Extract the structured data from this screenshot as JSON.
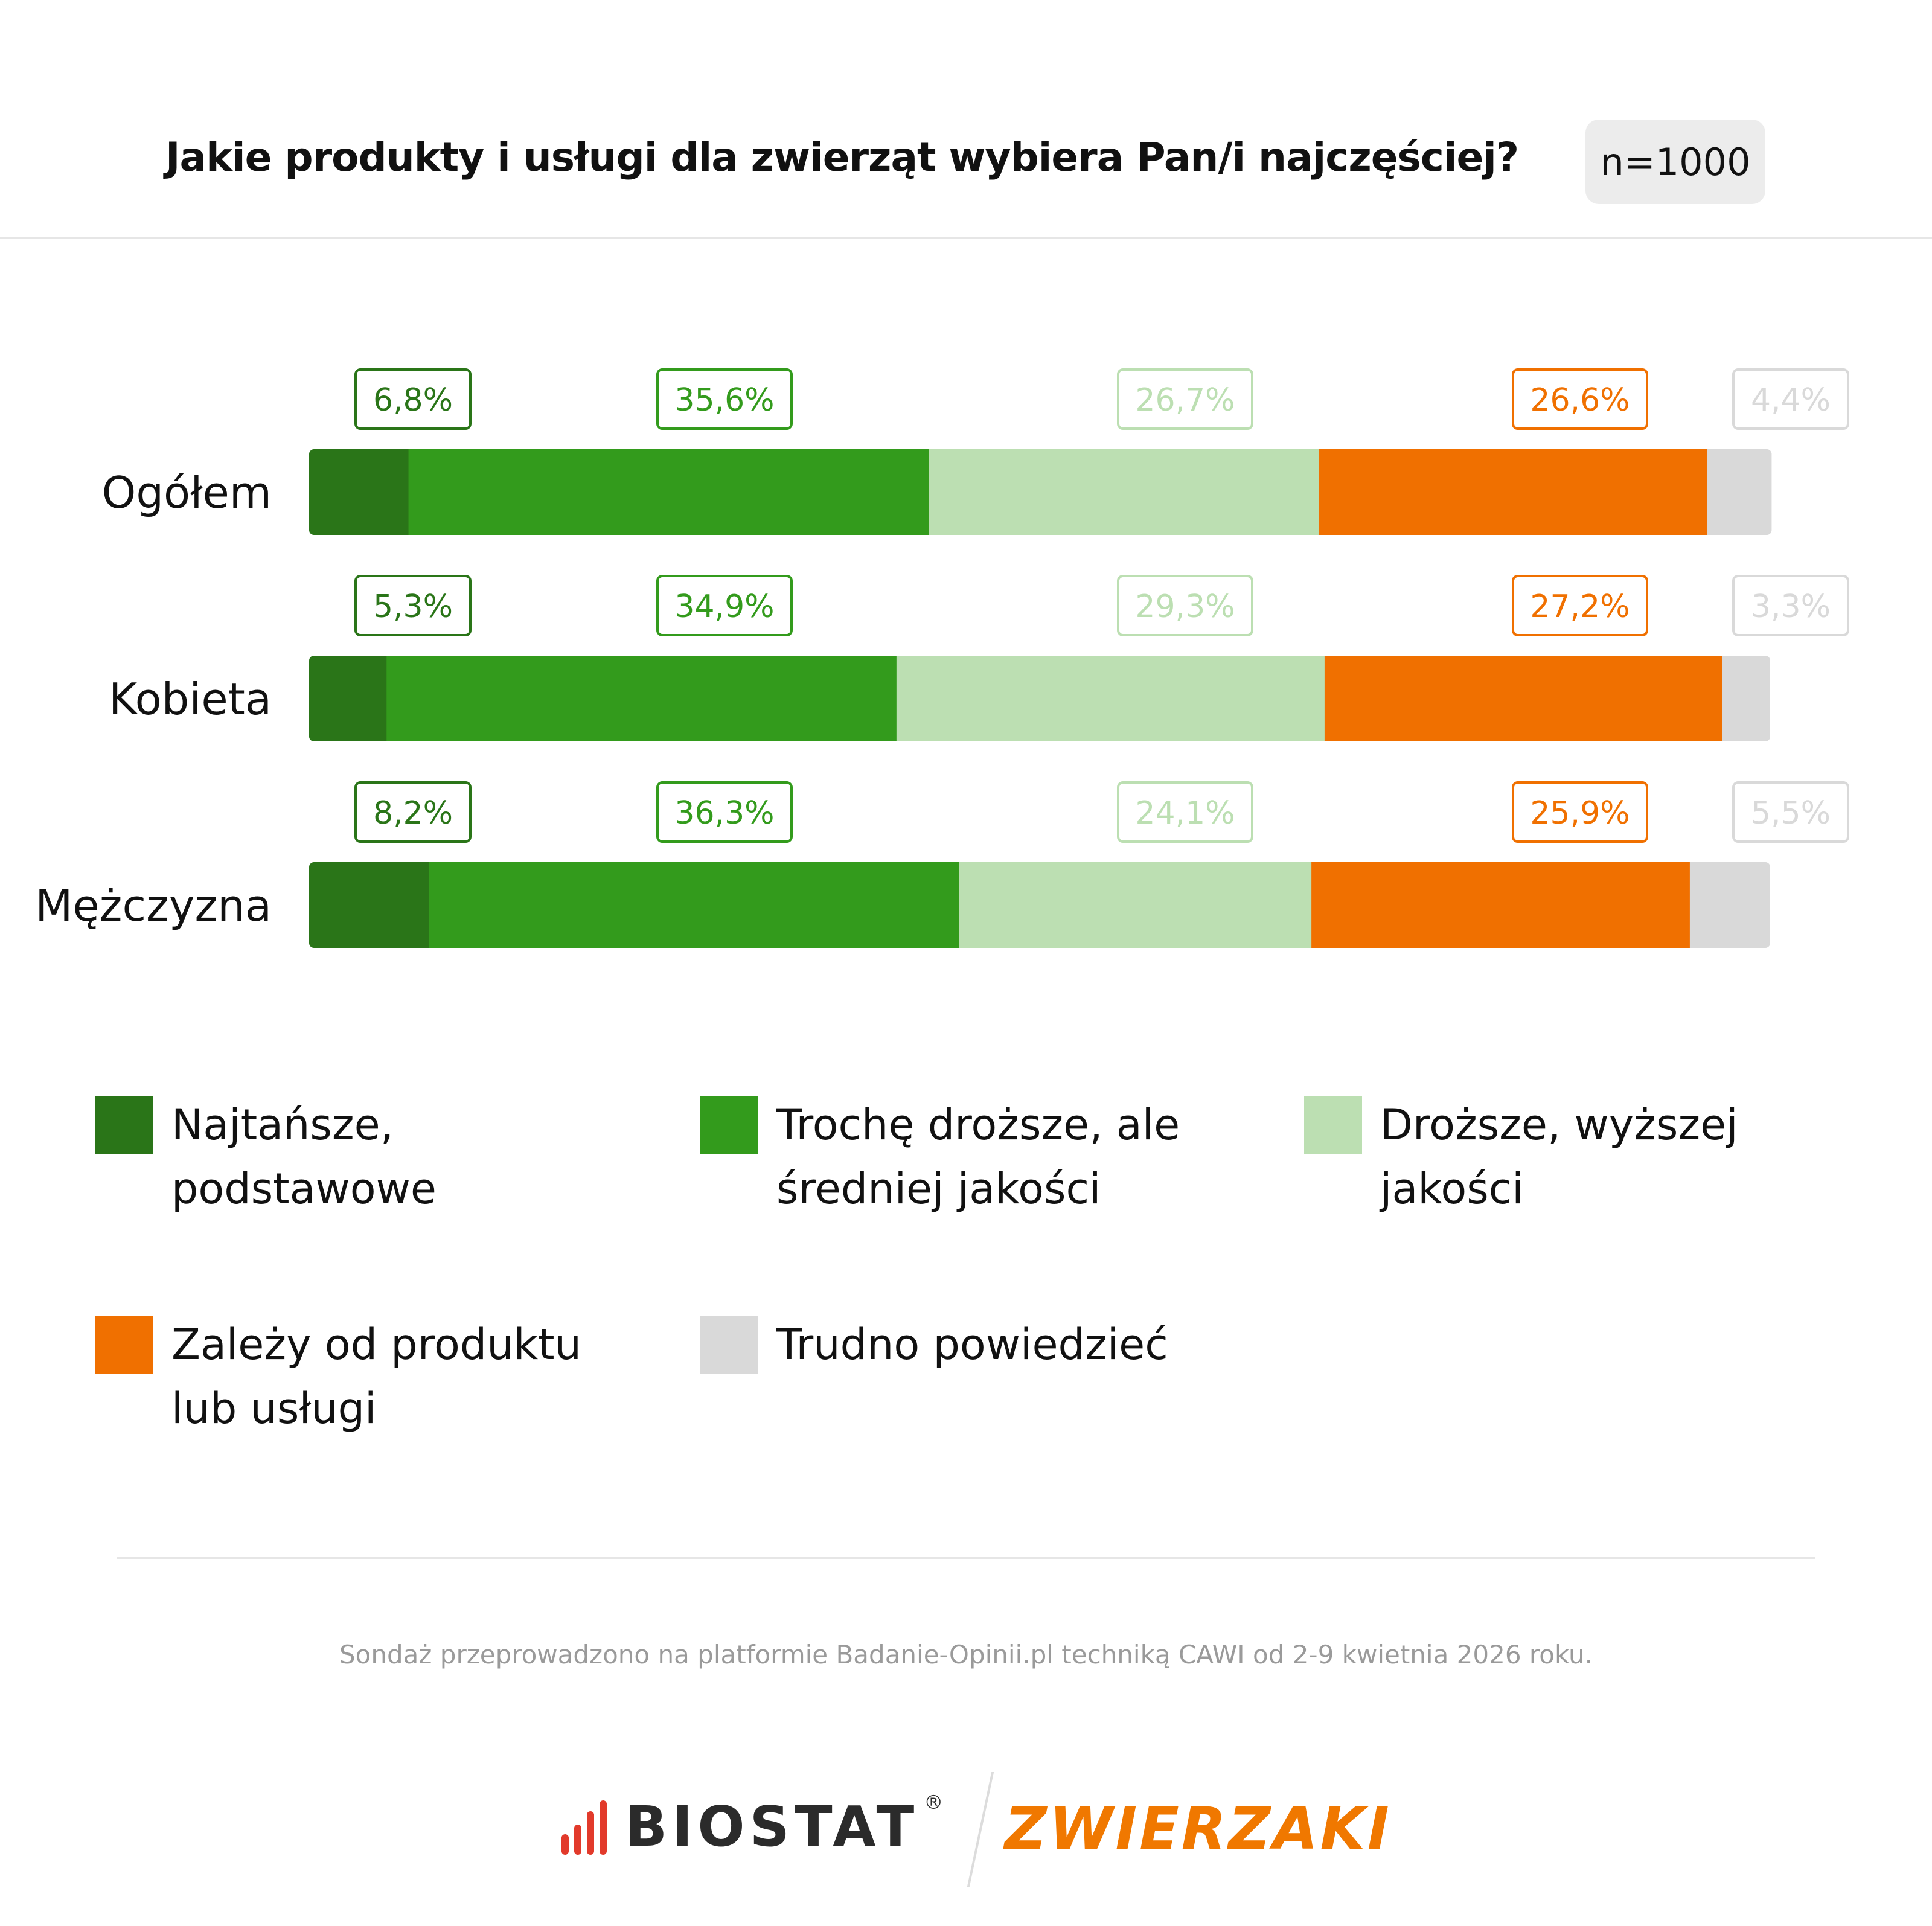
{
  "header": {
    "title": "Jakie produkty i usługi dla zwierząt wybiera Pan/i najczęściej?",
    "sample": "n=1000"
  },
  "colors": {
    "najtansze": "#2a7518",
    "troche": "#339b1c",
    "drozsze": "#bcdfb2",
    "zalezy": "#f07000",
    "trudno": "#d9d9d9"
  },
  "chart_data": {
    "type": "bar",
    "orientation": "horizontal",
    "stacked": true,
    "categories": [
      "Ogółem",
      "Kobieta",
      "Mężczyzna"
    ],
    "series": [
      {
        "name": "Najtańsze, podstawowe",
        "values": [
          6.8,
          5.3,
          8.2
        ],
        "labels": [
          "6,8%",
          "5,3%",
          "8,2%"
        ],
        "color": "#2a7518"
      },
      {
        "name": "Trochę droższe, ale średniej jakości",
        "values": [
          35.6,
          34.9,
          36.3
        ],
        "labels": [
          "35,6%",
          "34,9%",
          "36,3%"
        ],
        "color": "#339b1c"
      },
      {
        "name": "Droższe, wyższej jakości",
        "values": [
          26.7,
          29.3,
          24.1
        ],
        "labels": [
          "26,7%",
          "29,3%",
          "24,1%"
        ],
        "color": "#bcdfb2"
      },
      {
        "name": "Zależy od produktu lub usługi",
        "values": [
          26.6,
          27.2,
          25.9
        ],
        "labels": [
          "26,6%",
          "27,2%",
          "25,9%"
        ],
        "color": "#f07000"
      },
      {
        "name": "Trudno powiedzieć",
        "values": [
          4.4,
          3.3,
          5.5
        ],
        "labels": [
          "4,4%",
          "3,3%",
          "5,5%"
        ],
        "color": "#d9d9d9"
      }
    ],
    "xlim": [
      0,
      100
    ],
    "grid": false,
    "legend_position": "bottom"
  },
  "legend": [
    {
      "label": "Najtańsze, podstawowe",
      "color": "#2a7518"
    },
    {
      "label": "Trochę droższe, ale średniej jakości",
      "color": "#339b1c"
    },
    {
      "label": "Droższe, wyższej jakości",
      "color": "#bcdfb2"
    },
    {
      "label": "Zależy od produktu lub usługi",
      "color": "#f07000"
    },
    {
      "label": "Trudno powiedzieć",
      "color": "#d9d9d9"
    }
  ],
  "footer": {
    "note": "Sondaż przeprowadzono na platformie Badanie-Opinii.pl techniką CAWI od 2-9 kwietnia 2026 roku.",
    "logo_left": "BIOSTAT",
    "logo_left_mark": "®",
    "logo_right": "ZWIERZAKI"
  }
}
